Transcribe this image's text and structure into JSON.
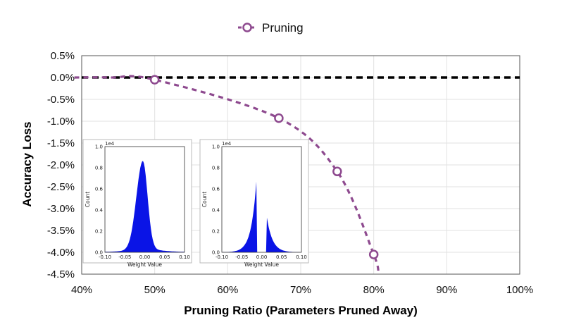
{
  "chart_data": {
    "type": "scatter",
    "legend": {
      "entries": [
        "Pruning"
      ],
      "placement": "top-center"
    },
    "xlabel": "Pruning Ratio (Parameters Pruned Away)",
    "ylabel": "Accuracy Loss",
    "xlim": [
      40,
      100
    ],
    "ylim": [
      -4.5,
      0.5
    ],
    "x_ticks": [
      "40%",
      "50%",
      "60%",
      "70%",
      "80%",
      "90%",
      "100%"
    ],
    "y_ticks": [
      "0.5%",
      "0.0%",
      "-0.5%",
      "-1.0%",
      "-1.5%",
      "-2.0%",
      "-2.5%",
      "-3.0%",
      "-3.5%",
      "-4.0%",
      "-4.5%"
    ],
    "grid": true,
    "series": [
      {
        "name": "Pruning",
        "color": "#8e4a8f",
        "marker": "hollow-circle",
        "line": "dashed",
        "points": [
          {
            "x": 50,
            "y": -0.05
          },
          {
            "x": 67,
            "y": -0.93
          },
          {
            "x": 75,
            "y": -2.15
          },
          {
            "x": 80,
            "y": -4.05
          }
        ]
      }
    ],
    "reference_line": {
      "y": 0.0,
      "style": "dashed",
      "color": "#000000"
    },
    "insets": [
      {
        "type": "histogram",
        "scale_label": "1e4",
        "ylabel": "Count",
        "xlabel": "Weight Value",
        "x_ticks": [
          "-0.10",
          "-0.05",
          "0.00",
          "0.05",
          "0.10"
        ],
        "y_ticks": [
          "1.0",
          "0.8",
          "0.6",
          "0.4",
          "0.2",
          "0.0"
        ],
        "xlim": [
          -0.1,
          0.1
        ],
        "ylim": [
          0,
          1.0
        ],
        "color": "#0a14e6",
        "distribution": "unpruned"
      },
      {
        "type": "histogram",
        "scale_label": "1e4",
        "ylabel": "Count",
        "xlabel": "Weight Value",
        "x_ticks": [
          "-0.10",
          "-0.05",
          "0.00",
          "0.05",
          "0.10"
        ],
        "y_ticks": [
          "1.0",
          "0.8",
          "0.6",
          "0.4",
          "0.2",
          "0.0"
        ],
        "xlim": [
          -0.1,
          0.1
        ],
        "ylim": [
          0,
          1.0
        ],
        "color": "#0a14e6",
        "distribution": "pruned"
      }
    ]
  }
}
